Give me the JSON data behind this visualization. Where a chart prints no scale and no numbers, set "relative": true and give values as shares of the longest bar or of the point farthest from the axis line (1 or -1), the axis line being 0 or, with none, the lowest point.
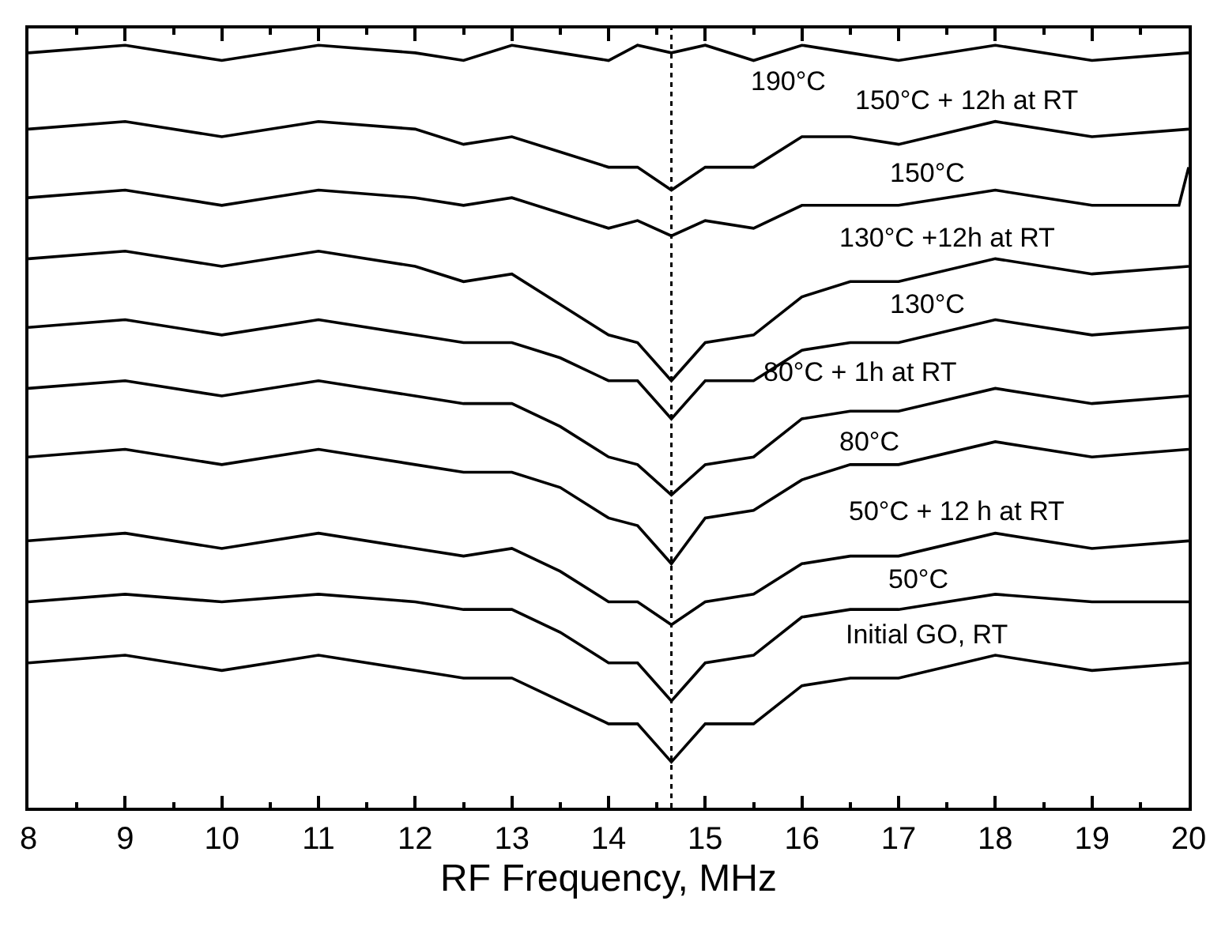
{
  "chart_data": {
    "type": "line",
    "relative": true,
    "xlabel": "RF Frequency, MHz",
    "x": [
      8,
      9,
      10,
      11,
      12,
      12.5,
      13,
      13.5,
      14,
      14.3,
      14.65,
      15,
      15.5,
      16,
      16.5,
      17,
      18,
      19,
      20
    ],
    "xlim": [
      8,
      20
    ],
    "xticks": [
      8,
      9,
      10,
      11,
      12,
      13,
      14,
      15,
      16,
      17,
      18,
      19,
      20
    ],
    "tick_labels": "x",
    "marker": "none",
    "line_style": "solid",
    "ref_lines": [
      {
        "axis": "x",
        "value": 14.65,
        "color": "#000000",
        "line_style": "dotted"
      }
    ],
    "series": [
      {
        "name": "190°C",
        "color": "#000000",
        "values": [
          0.99,
          1.0,
          0.98,
          1.0,
          0.99,
          0.98,
          1.0,
          0.99,
          0.98,
          1.0,
          0.99,
          1.0,
          0.98,
          1.0,
          0.99,
          0.98,
          1.0,
          0.98,
          0.99
        ]
      },
      {
        "name": "150°C + 12h at RT",
        "color": "#000000",
        "values": [
          0.89,
          0.9,
          0.88,
          0.9,
          0.89,
          0.87,
          0.88,
          0.86,
          0.84,
          0.84,
          0.81,
          0.84,
          0.84,
          0.88,
          0.88,
          0.87,
          0.9,
          0.88,
          0.89
        ]
      },
      {
        "name": "150°C",
        "color": "#000000",
        "x": [
          8,
          9,
          10,
          11,
          12,
          12.5,
          13,
          13.5,
          14,
          14.3,
          14.65,
          15,
          15.5,
          16,
          16.5,
          17,
          18,
          19,
          19.9,
          20
        ],
        "values": [
          0.8,
          0.81,
          0.79,
          0.81,
          0.8,
          0.79,
          0.8,
          0.78,
          0.76,
          0.77,
          0.75,
          0.77,
          0.76,
          0.79,
          0.79,
          0.79,
          0.81,
          0.79,
          0.79,
          0.84
        ]
      },
      {
        "name": "130°C +12h at RT",
        "color": "#000000",
        "values": [
          0.72,
          0.73,
          0.71,
          0.73,
          0.71,
          0.69,
          0.7,
          0.66,
          0.62,
          0.61,
          0.56,
          0.61,
          0.62,
          0.67,
          0.69,
          0.69,
          0.72,
          0.7,
          0.71
        ]
      },
      {
        "name": "130°C",
        "color": "#000000",
        "values": [
          0.63,
          0.64,
          0.62,
          0.64,
          0.62,
          0.61,
          0.61,
          0.59,
          0.56,
          0.56,
          0.51,
          0.56,
          0.56,
          0.6,
          0.61,
          0.61,
          0.64,
          0.62,
          0.63
        ]
      },
      {
        "name": "80°C + 1h at RT",
        "color": "#000000",
        "values": [
          0.55,
          0.56,
          0.54,
          0.56,
          0.54,
          0.53,
          0.53,
          0.5,
          0.46,
          0.45,
          0.41,
          0.45,
          0.46,
          0.51,
          0.52,
          0.52,
          0.55,
          0.53,
          0.54
        ]
      },
      {
        "name": "80°C",
        "color": "#000000",
        "values": [
          0.46,
          0.47,
          0.45,
          0.47,
          0.45,
          0.44,
          0.44,
          0.42,
          0.38,
          0.37,
          0.32,
          0.38,
          0.39,
          0.43,
          0.45,
          0.45,
          0.48,
          0.46,
          0.47
        ]
      },
      {
        "name": "50°C + 12 h at RT",
        "color": "#000000",
        "values": [
          0.35,
          0.36,
          0.34,
          0.36,
          0.34,
          0.33,
          0.34,
          0.31,
          0.27,
          0.27,
          0.24,
          0.27,
          0.28,
          0.32,
          0.33,
          0.33,
          0.36,
          0.34,
          0.35
        ]
      },
      {
        "name": "50°C",
        "color": "#000000",
        "values": [
          0.27,
          0.28,
          0.27,
          0.28,
          0.27,
          0.26,
          0.26,
          0.23,
          0.19,
          0.19,
          0.14,
          0.19,
          0.2,
          0.25,
          0.26,
          0.26,
          0.28,
          0.27,
          0.27
        ]
      },
      {
        "name": "Initial GO, RT",
        "color": "#000000",
        "values": [
          0.19,
          0.2,
          0.18,
          0.2,
          0.18,
          0.17,
          0.17,
          0.14,
          0.11,
          0.11,
          0.06,
          0.11,
          0.11,
          0.16,
          0.17,
          0.17,
          0.2,
          0.18,
          0.19
        ]
      }
    ]
  }
}
